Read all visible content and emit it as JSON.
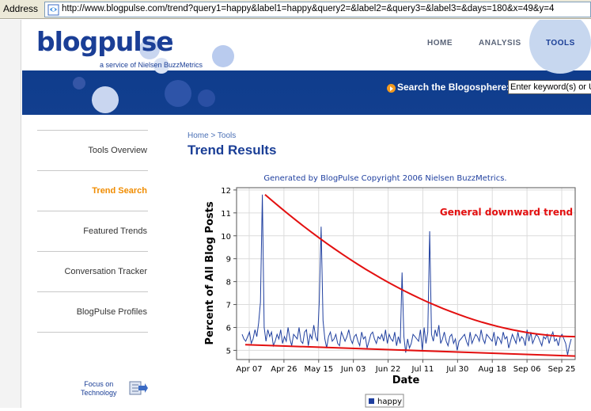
{
  "browser": {
    "address_label": "Address",
    "url": "http://www.blogpulse.com/trend?query1=happy&label1=happy&query2=&label2=&query3=&label3=&days=180&x=49&y=4"
  },
  "header": {
    "logo": "blogpulse",
    "logo_tm": "™",
    "tagline": "a service of Nielsen BuzzMetrics",
    "nav": [
      {
        "label": "HOME"
      },
      {
        "label": "ANALYSIS"
      },
      {
        "label": "TOOLS"
      }
    ],
    "search_label": "Search the Blogosphere:",
    "search_value": "Enter keyword(s) or U"
  },
  "sidebar": {
    "items": [
      {
        "label": "Tools Overview"
      },
      {
        "label": "Trend Search"
      },
      {
        "label": "Featured Trends"
      },
      {
        "label": "Conversation Tracker"
      },
      {
        "label": "BlogPulse Profiles"
      }
    ],
    "active_index": 1,
    "focus_line1": "Focus on",
    "focus_line2": "Technology"
  },
  "main": {
    "breadcrumb": "Home > Tools",
    "title": "Trend Results"
  },
  "colors": {
    "brand_blue": "#1a3e96",
    "active_orange": "#f08c00",
    "series_blue": "#1f3f9f",
    "trend_red": "#e31010"
  },
  "chart_data": {
    "type": "line",
    "title": "Generated by BlogPulse Copyright 2006 Nielsen BuzzMetrics.",
    "xlabel": "Date",
    "ylabel": "Percent of All Blog Posts",
    "ylim": [
      4.6,
      12.1
    ],
    "yticks": [
      5,
      6,
      7,
      8,
      9,
      10,
      11,
      12
    ],
    "x_tick_labels": [
      "Apr 07",
      "Apr 26",
      "May 15",
      "Jun 03",
      "Jun 22",
      "Jul 11",
      "Jul 30",
      "Aug 18",
      "Sep 06",
      "Sep 25"
    ],
    "annotation": "General downward trend",
    "legend_placement": "bottom",
    "series": [
      {
        "name": "happy",
        "values": [
          5.7,
          5.5,
          5.4,
          5.6,
          5.8,
          5.3,
          5.5,
          5.9,
          5.6,
          6.2,
          7.1,
          11.8,
          6.0,
          5.4,
          5.9,
          5.6,
          5.8,
          5.2,
          5.4,
          5.7,
          5.5,
          5.9,
          5.3,
          5.6,
          5.4,
          6.0,
          5.5,
          5.2,
          5.7,
          5.6,
          5.5,
          6.0,
          5.4,
          5.3,
          5.8,
          5.9,
          5.2,
          5.7,
          5.5,
          6.1,
          5.6,
          5.4,
          7.2,
          10.4,
          6.3,
          5.5,
          5.1,
          5.6,
          5.8,
          5.4,
          5.5,
          5.7,
          5.3,
          5.2,
          5.8,
          5.6,
          5.4,
          5.6,
          5.9,
          5.5,
          5.3,
          5.6,
          5.7,
          5.4,
          5.2,
          5.8,
          5.5,
          5.6,
          5.1,
          5.4,
          5.7,
          5.8,
          5.5,
          5.3,
          5.6,
          5.5,
          5.7,
          5.4,
          5.9,
          5.3,
          5.7,
          5.5,
          5.4,
          5.8,
          5.2,
          5.6,
          5.3,
          8.4,
          5.6,
          4.9,
          5.5,
          5.1,
          5.3,
          5.7,
          5.6,
          5.5,
          5.4,
          5.9,
          5.0,
          6.0,
          5.3,
          5.8,
          10.2,
          5.7,
          5.4,
          5.9,
          5.6,
          6.1,
          5.3,
          5.5,
          5.8,
          5.4,
          5.2,
          5.6,
          5.7,
          5.3,
          5.5,
          5.0,
          5.4,
          5.5,
          5.6,
          5.7,
          5.4,
          5.2,
          5.8,
          5.3,
          5.5,
          5.7,
          5.6,
          5.4,
          5.9,
          5.5,
          5.3,
          5.7,
          5.6,
          5.5,
          5.4,
          5.8,
          5.2,
          5.6,
          5.5,
          5.3,
          5.8,
          5.5,
          5.6,
          5.1,
          5.4,
          5.7,
          5.5,
          5.3,
          5.8,
          5.4,
          5.6,
          5.5,
          5.2,
          5.9,
          5.4,
          5.8,
          5.3,
          5.5,
          5.7,
          5.6,
          5.4,
          5.2,
          5.6,
          5.5,
          5.7,
          5.3,
          5.6,
          5.8,
          5.4,
          5.5,
          5.2,
          5.6,
          5.7,
          5.5,
          5.3,
          4.8,
          5.2,
          5.5
        ]
      }
    ],
    "trend_lines": {
      "upper_start": 11.8,
      "upper_end": 5.6,
      "lower_start": 5.25,
      "lower_end": 4.75
    }
  }
}
